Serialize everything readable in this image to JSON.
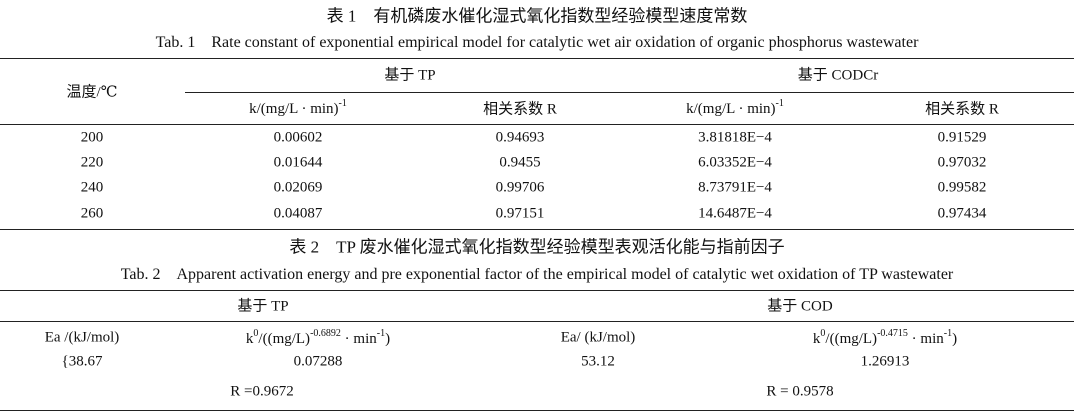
{
  "table1": {
    "title_cn": "表 1　有机磷废水催化湿式氧化指数型经验模型速度常数",
    "title_en": "Tab. 1　Rate constant of exponential empirical model for catalytic wet air oxidation of organic phosphorus wastewater",
    "row_header": "温度/℃",
    "group_headers": [
      "基于 TP",
      "基于 CODCr"
    ],
    "sub_headers": [
      [
        "k/(mg/L · min)",
        "-1"
      ],
      [
        "相关系数 R"
      ],
      [
        "k/(mg/L · min)",
        "-1"
      ],
      [
        "相关系数 R"
      ]
    ],
    "rows": [
      [
        "200",
        "0.00602",
        "0.94693",
        "3.81818E−4",
        "0.91529"
      ],
      [
        "220",
        "0.01644",
        "0.9455",
        "6.03352E−4",
        "0.97032"
      ],
      [
        "240",
        "0.02069",
        "0.99706",
        "8.73791E−4",
        "0.99582"
      ],
      [
        "260",
        "0.04087",
        "0.97151",
        "14.6487E−4",
        "0.97434"
      ]
    ]
  },
  "table2": {
    "title_cn": "表 2　TP 废水催化湿式氧化指数型经验模型表观活化能与指前因子",
    "title_en": "Tab. 2　Apparent activation energy and pre exponential factor of the empirical model of catalytic wet oxidation of TP wastewater",
    "group_headers": [
      "基于 TP",
      "基于 COD"
    ],
    "sub_headers": [
      [
        "Ea /(kJ/mol)"
      ],
      [
        "k",
        "0",
        "/((mg/L)",
        "-0.6892",
        " · min",
        "-1",
        ")"
      ],
      [
        "Ea/ (kJ/mol)"
      ],
      [
        "k",
        "0",
        "/((mg/L)",
        "-0.4715",
        " · min",
        "-1",
        ")"
      ]
    ],
    "row": [
      "{38.67",
      "0.07288",
      "53.12",
      "1.26913"
    ],
    "r_values": [
      "R =0.9672",
      "R = 0.9578"
    ]
  }
}
